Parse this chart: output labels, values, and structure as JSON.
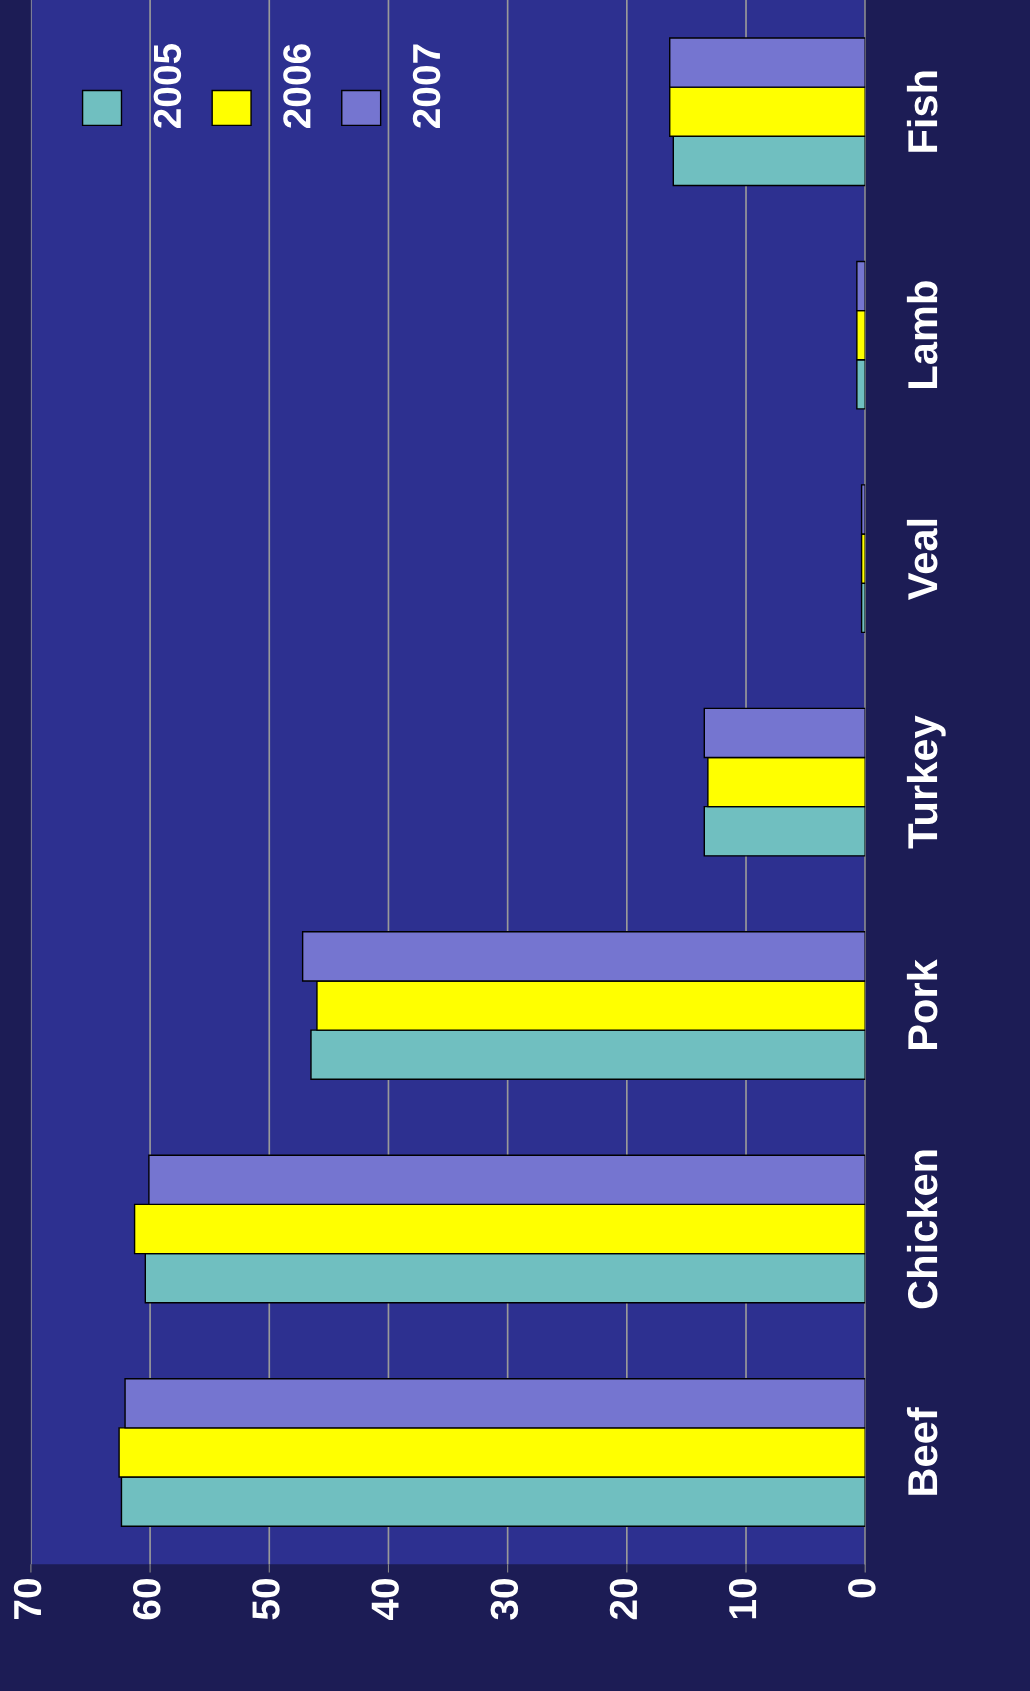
{
  "chart_data": {
    "type": "bar",
    "orientation": "horizontal",
    "categories": [
      "Fish",
      "Lamb",
      "Veal",
      "Turkey",
      "Pork",
      "Chicken",
      "Beef"
    ],
    "series": [
      {
        "name": "2005",
        "color": "#70bfc0",
        "values": [
          16.1,
          0.7,
          0.3,
          13.5,
          46.5,
          60.4,
          62.4
        ]
      },
      {
        "name": "2006",
        "color": "#ffff00",
        "values": [
          16.4,
          0.7,
          0.3,
          13.2,
          46.0,
          61.3,
          62.6
        ]
      },
      {
        "name": "2007",
        "color": "#7575d0",
        "values": [
          16.4,
          0.7,
          0.3,
          13.5,
          47.2,
          60.1,
          62.1
        ]
      }
    ],
    "xlim": [
      70,
      0
    ],
    "xticks": [
      0,
      10,
      20,
      30,
      40,
      50,
      60,
      70
    ],
    "grid": "x",
    "legend": "top left"
  }
}
